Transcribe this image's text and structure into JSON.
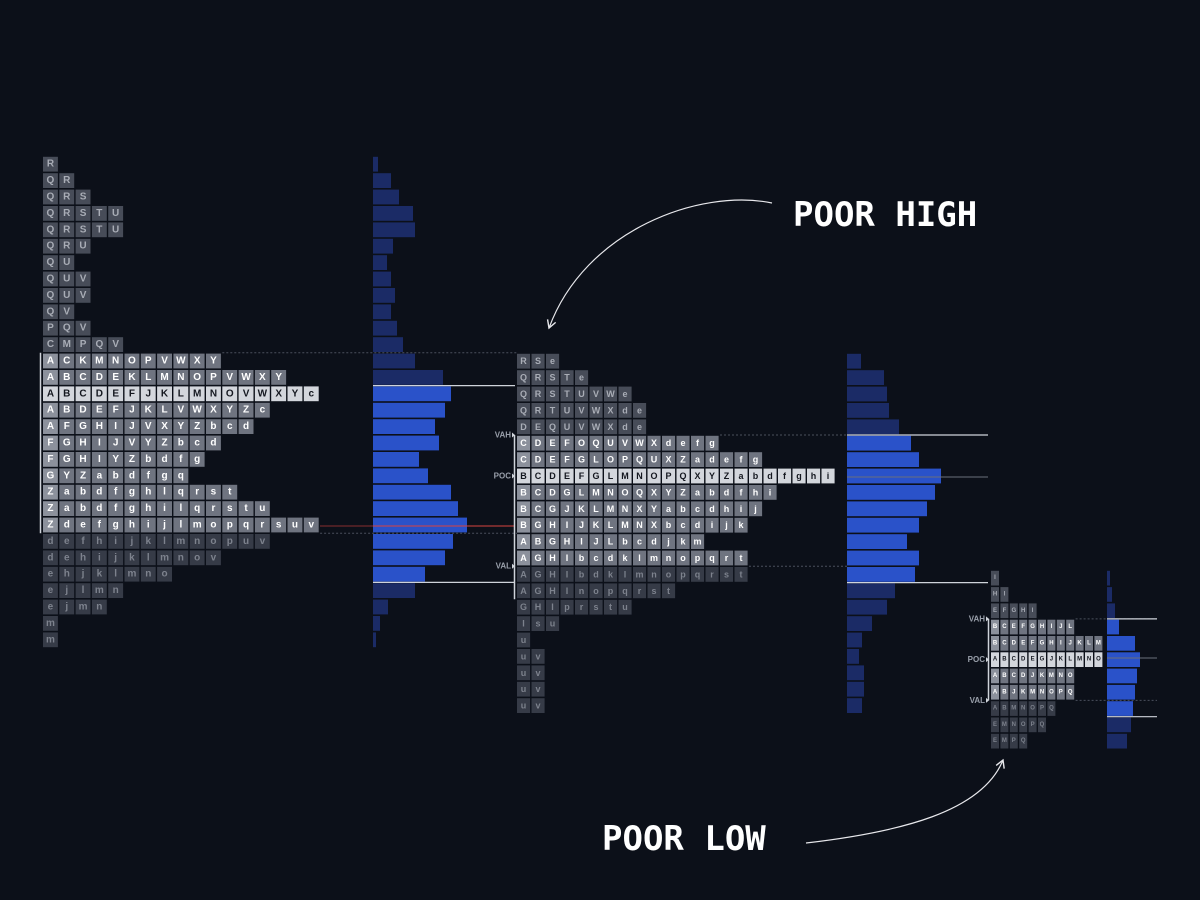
{
  "profiles": [
    {
      "rows": [
        "R",
        "QR",
        "QRS",
        "QRSTU",
        "QRSTU",
        "QRU",
        "QU",
        "QUV",
        "QUV",
        "QV",
        "PQV",
        "CMPQV",
        "ACKMNOPVWXY",
        "ABCDEKLMNOPVWXY",
        "ABCDEFJKLMNOVWXYc",
        "ABDEFJKLVWXYZc",
        "AFGHIJVXYZbcd",
        "FGHIJVYZbcd",
        "FGHIYZbdfg",
        "GYZabdfgq",
        "Zabdfghlqrst",
        "Zabdfghilqrstu",
        "Zdefghijlmopqrsuv",
        "defhijklmnopuv",
        "dehijklmnov",
        "ehjklmno",
        "ejlmn",
        "ejmn",
        "m",
        "m"
      ],
      "volume": [
        5,
        18,
        26,
        40,
        42,
        20,
        14,
        18,
        22,
        18,
        24,
        30,
        42,
        70,
        78,
        72,
        62,
        66,
        46,
        55,
        78,
        85,
        94,
        80,
        72,
        52,
        42,
        15,
        7,
        3
      ]
    },
    {
      "rows": [
        "RSe",
        "QRSTe",
        "QRSTUVWe",
        "QRTUVWXde",
        "DEQUVWXde",
        "CDEFOQUVWXdefg",
        "CDEFGLOPQUXZadefg",
        "BCDEFGLMNOPQXYZabdfghi",
        "BCDGLMNOQXYZabdfhi",
        "BCGJKLMNXYabcdhij",
        "BGHIJKLMNXbcdijk",
        "ABGHIJLbcdjkm",
        "AGHIbcdklmnopqrt",
        "AGHIbdklmnopqrst",
        "AGHInopqrst",
        "GHIprstu",
        "Isu",
        "u",
        "uv",
        "uv",
        "uv",
        "uv"
      ],
      "volume": [
        14,
        37,
        40,
        42,
        52,
        64,
        72,
        94,
        88,
        80,
        72,
        60,
        72,
        68,
        48,
        40,
        25,
        15,
        12,
        17,
        17,
        15
      ],
      "markers": {
        "vah": "VAH",
        "poc": "POC",
        "val": "VAL"
      }
    },
    {
      "rows": [
        "I",
        "HI",
        "EFGHI",
        "BCEFGHIJL",
        "BCDEFGHIJKLM",
        "ABCDEGJKLMNO",
        "ABCDJKMNO",
        "ABJKMNOPQ",
        "ABMNOPQ",
        "EMNOPQ",
        "EMPQ"
      ],
      "volume": [
        3,
        5,
        8,
        12,
        28,
        33,
        30,
        28,
        26,
        24,
        20
      ],
      "markers": {
        "vah": "VAH",
        "poc": "POC",
        "val": "VAL"
      }
    }
  ],
  "annotations": {
    "poor_high": "POOR HIGH",
    "poor_low": "POOR LOW"
  }
}
